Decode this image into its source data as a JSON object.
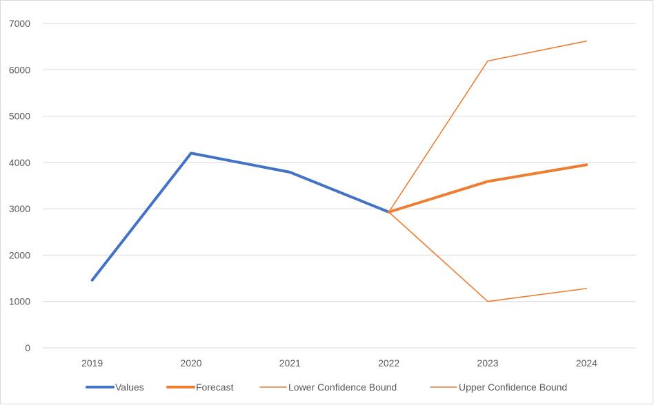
{
  "chart_data": {
    "type": "line",
    "title": "",
    "xlabel": "",
    "ylabel": "",
    "categories": [
      "2019",
      "2020",
      "2021",
      "2022",
      "2023",
      "2024"
    ],
    "ylim": [
      0,
      7000
    ],
    "yticks": [
      0,
      1000,
      2000,
      3000,
      4000,
      5000,
      6000,
      7000
    ],
    "grid": true,
    "legend_position": "bottom",
    "series": [
      {
        "name": "Values",
        "color": "#4472C4",
        "style": "thick",
        "values": [
          1460,
          4200,
          3790,
          2930,
          null,
          null
        ]
      },
      {
        "name": "Forecast",
        "color": "#ED7D31",
        "style": "thick",
        "values": [
          null,
          null,
          null,
          2930,
          3590,
          3950
        ]
      },
      {
        "name": "Lower Confidence Bound",
        "color": "#ED7D31",
        "style": "thin",
        "values": [
          null,
          null,
          null,
          2930,
          1000,
          1280
        ]
      },
      {
        "name": "Upper Confidence Bound",
        "color": "#ED7D31",
        "style": "thin",
        "values": [
          null,
          null,
          null,
          2930,
          6190,
          6620
        ]
      }
    ]
  }
}
